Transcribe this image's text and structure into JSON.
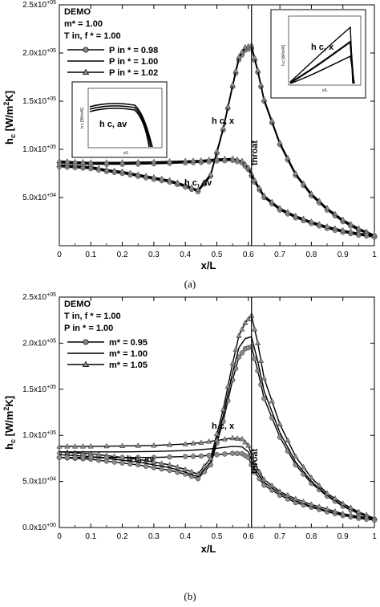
{
  "figure": {
    "panels": [
      {
        "caption": "(a)",
        "legend": {
          "title_lines": [
            "DEMO",
            "m* = 1.00",
            "T in, f * = 1.00"
          ],
          "entries": [
            {
              "label": "P in * = 0.98",
              "marker": "circle"
            },
            {
              "label": "P in * = 1.00",
              "marker": "none"
            },
            {
              "label": "P in * = 1.02",
              "marker": "triangle"
            }
          ]
        },
        "annotations": [
          {
            "text": "h c, x"
          },
          {
            "text": "h c, av"
          },
          {
            "text": "throat"
          }
        ],
        "insets": [
          {
            "annotation": "h c, av",
            "xlabel": "x/L",
            "ylabel": "h c [W/m²K]"
          },
          {
            "annotation": "h c, x",
            "xlabel": "x/L",
            "ylabel": "h c [W/m²K]"
          }
        ]
      },
      {
        "caption": "(b)",
        "legend": {
          "title_lines": [
            "DEMO",
            "T in, f * = 1.00",
            "P in * = 1.00"
          ],
          "entries": [
            {
              "label": "m* = 0.95",
              "marker": "circle"
            },
            {
              "label": "m* = 1.00",
              "marker": "none"
            },
            {
              "label": "m* = 1.05",
              "marker": "triangle"
            }
          ]
        },
        "annotations": [
          {
            "text": "h c, x"
          },
          {
            "text": "h c, av"
          },
          {
            "text": "throat"
          }
        ]
      }
    ]
  },
  "chart_data": [
    {
      "type": "line",
      "title": "",
      "xlabel": "x/L",
      "ylabel": "h c [W/m2K]",
      "xlim": [
        0,
        1
      ],
      "ylim": [
        0,
        250000
      ],
      "xticks": [
        "0",
        "0.1",
        "0.2",
        "0.3",
        "0.4",
        "0.5",
        "0.6",
        "0.7",
        "0.8",
        "0.9",
        "1"
      ],
      "yticks": [
        {
          "value": 50000,
          "label": "5.0x10+04"
        },
        {
          "value": 100000,
          "label": "1.0x10+05"
        },
        {
          "value": 150000,
          "label": "1.5x10+05"
        },
        {
          "value": 200000,
          "label": "2.0x10+05"
        },
        {
          "value": 250000,
          "label": "2.5x10+05"
        }
      ],
      "throat_x": 0.61,
      "series": [
        {
          "name": "P in * = 0.98",
          "marker": "circle",
          "x": [
            0,
            0.05,
            0.1,
            0.15,
            0.2,
            0.25,
            0.3,
            0.35,
            0.4,
            0.44,
            0.48,
            0.52,
            0.55,
            0.57,
            0.59,
            0.61,
            0.63,
            0.65,
            0.7,
            0.75,
            0.8,
            0.85,
            0.9,
            0.95,
            1.0
          ],
          "y": [
            82000,
            81000,
            80000,
            77000,
            75000,
            72000,
            69000,
            66000,
            61000,
            56000,
            72000,
            120000,
            165000,
            193000,
            203000,
            205000,
            180000,
            150000,
            105000,
            73000,
            52000,
            37000,
            25000,
            16000,
            10000
          ]
        },
        {
          "name": "P in * = 1.00",
          "marker": "none",
          "x": [
            0,
            0.05,
            0.1,
            0.15,
            0.2,
            0.25,
            0.3,
            0.35,
            0.4,
            0.44,
            0.48,
            0.52,
            0.55,
            0.57,
            0.59,
            0.61,
            0.63,
            0.65,
            0.7,
            0.75,
            0.8,
            0.85,
            0.9,
            0.95,
            1.0
          ],
          "y": [
            83000,
            82000,
            81000,
            78000,
            76000,
            73000,
            70000,
            67000,
            62000,
            57000,
            73000,
            121000,
            166000,
            195000,
            205000,
            207000,
            181000,
            151000,
            106000,
            74000,
            53000,
            38000,
            26000,
            17000,
            10000
          ]
        },
        {
          "name": "P in * = 1.02",
          "marker": "triangle",
          "x": [
            0,
            0.05,
            0.1,
            0.15,
            0.2,
            0.25,
            0.3,
            0.35,
            0.4,
            0.44,
            0.48,
            0.52,
            0.55,
            0.57,
            0.59,
            0.61,
            0.63,
            0.65,
            0.7,
            0.75,
            0.8,
            0.85,
            0.9,
            0.95,
            1.0
          ],
          "y": [
            84000,
            83000,
            82000,
            79000,
            77000,
            74000,
            71000,
            68000,
            63000,
            58000,
            74000,
            122000,
            167000,
            196000,
            206000,
            208000,
            182000,
            152000,
            107000,
            75000,
            54000,
            39000,
            27000,
            18000,
            11000
          ]
        },
        {
          "name": "h c, av (P in * = 0.98)",
          "marker": "circle",
          "x": [
            0,
            0.05,
            0.1,
            0.2,
            0.3,
            0.4,
            0.45,
            0.5,
            0.55,
            0.58,
            0.6,
            0.62,
            0.65,
            0.7,
            0.75,
            0.8,
            0.85,
            0.9,
            0.95,
            1.0
          ],
          "y": [
            86000,
            85000,
            84500,
            84500,
            85000,
            86000,
            86500,
            88000,
            88500,
            86000,
            79000,
            66000,
            50000,
            37000,
            29000,
            23000,
            18000,
            14000,
            11000,
            9000
          ]
        },
        {
          "name": "h c, av (P in * = 1.00)",
          "marker": "none",
          "x": [
            0,
            0.05,
            0.1,
            0.2,
            0.3,
            0.4,
            0.45,
            0.5,
            0.55,
            0.58,
            0.6,
            0.62,
            0.65,
            0.7,
            0.75,
            0.8,
            0.85,
            0.9,
            0.95,
            1.0
          ],
          "y": [
            87000,
            86000,
            85500,
            85500,
            86000,
            87000,
            87500,
            89000,
            89500,
            87000,
            80000,
            67000,
            51000,
            38000,
            30000,
            24000,
            19000,
            15000,
            12000,
            10000
          ]
        },
        {
          "name": "h c, av (P in * = 1.02)",
          "marker": "triangle",
          "x": [
            0,
            0.05,
            0.1,
            0.2,
            0.3,
            0.4,
            0.45,
            0.5,
            0.55,
            0.58,
            0.6,
            0.62,
            0.65,
            0.7,
            0.75,
            0.8,
            0.85,
            0.9,
            0.95,
            1.0
          ],
          "y": [
            88000,
            87000,
            86500,
            86500,
            87000,
            88000,
            88500,
            90000,
            90500,
            88000,
            81000,
            68000,
            52000,
            39000,
            31000,
            25000,
            20000,
            16000,
            13000,
            11000
          ]
        }
      ]
    },
    {
      "type": "line",
      "title": "",
      "xlabel": "x/L",
      "ylabel": "h c [W/m2K]",
      "xlim": [
        0,
        1
      ],
      "ylim": [
        0,
        250000
      ],
      "xticks": [
        "0",
        "0.1",
        "0.2",
        "0.3",
        "0.4",
        "0.5",
        "0.6",
        "0.7",
        "0.8",
        "0.9",
        "1"
      ],
      "yticks": [
        {
          "value": 0,
          "label": "0.0x10+00"
        },
        {
          "value": 50000,
          "label": "5.0x10+04"
        },
        {
          "value": 100000,
          "label": "1.0x10+05"
        },
        {
          "value": 150000,
          "label": "1.5x10+05"
        },
        {
          "value": 200000,
          "label": "2.0x10+05"
        },
        {
          "value": 250000,
          "label": "2.5x10+05"
        }
      ],
      "throat_x": 0.61,
      "series": [
        {
          "name": "m* = 0.95",
          "marker": "circle",
          "x": [
            0,
            0.05,
            0.1,
            0.15,
            0.2,
            0.25,
            0.3,
            0.35,
            0.4,
            0.44,
            0.48,
            0.52,
            0.55,
            0.57,
            0.59,
            0.61,
            0.63,
            0.65,
            0.7,
            0.75,
            0.8,
            0.85,
            0.9,
            0.95,
            1.0
          ],
          "y": [
            76000,
            75000,
            74000,
            72000,
            70000,
            68000,
            65000,
            62000,
            58000,
            53000,
            68000,
            115000,
            160000,
            185000,
            194000,
            196000,
            170000,
            140000,
            98000,
            68000,
            48000,
            34000,
            23000,
            15000,
            9000
          ]
        },
        {
          "name": "m* = 1.00",
          "marker": "none",
          "x": [
            0,
            0.05,
            0.1,
            0.15,
            0.2,
            0.25,
            0.3,
            0.35,
            0.4,
            0.44,
            0.48,
            0.52,
            0.55,
            0.57,
            0.59,
            0.61,
            0.63,
            0.65,
            0.7,
            0.75,
            0.8,
            0.85,
            0.9,
            0.95,
            1.0
          ],
          "y": [
            79000,
            78000,
            77000,
            75000,
            73000,
            71000,
            68000,
            65000,
            60000,
            55000,
            71000,
            121000,
            168000,
            195000,
            205000,
            207000,
            180000,
            148000,
            103000,
            71000,
            50000,
            35000,
            24000,
            16000,
            10000
          ]
        },
        {
          "name": "m* = 1.05",
          "marker": "triangle",
          "x": [
            0,
            0.05,
            0.1,
            0.15,
            0.2,
            0.25,
            0.3,
            0.35,
            0.4,
            0.44,
            0.48,
            0.52,
            0.55,
            0.57,
            0.59,
            0.61,
            0.63,
            0.65,
            0.7,
            0.75,
            0.8,
            0.85,
            0.9,
            0.95,
            1.0
          ],
          "y": [
            82000,
            81000,
            80000,
            78000,
            76000,
            74000,
            71000,
            68000,
            63000,
            58000,
            75000,
            128000,
            178000,
            208000,
            222000,
            230000,
            200000,
            162000,
            112000,
            77000,
            54000,
            37000,
            26000,
            17000,
            10000
          ]
        },
        {
          "name": "h c, av (m* = 0.95)",
          "marker": "circle",
          "x": [
            0,
            0.05,
            0.1,
            0.2,
            0.3,
            0.4,
            0.45,
            0.5,
            0.55,
            0.58,
            0.6,
            0.62,
            0.65,
            0.7,
            0.75,
            0.8,
            0.85,
            0.9,
            0.95,
            1.0
          ],
          "y": [
            76000,
            76000,
            76000,
            76000,
            76000,
            77000,
            77500,
            79000,
            80500,
            80000,
            76000,
            60000,
            46000,
            35000,
            27000,
            22000,
            17000,
            13000,
            10000,
            8000
          ]
        },
        {
          "name": "h c, av (m* = 1.00)",
          "marker": "none",
          "x": [
            0,
            0.05,
            0.1,
            0.2,
            0.3,
            0.4,
            0.45,
            0.5,
            0.55,
            0.58,
            0.6,
            0.62,
            0.65,
            0.7,
            0.75,
            0.8,
            0.85,
            0.9,
            0.95,
            1.0
          ],
          "y": [
            82000,
            82000,
            82000,
            82000,
            82500,
            83500,
            84500,
            86000,
            88000,
            87500,
            82000,
            64000,
            49000,
            37000,
            29000,
            23000,
            18000,
            14000,
            11000,
            9000
          ]
        },
        {
          "name": "h c, av (m* = 1.05)",
          "marker": "triangle",
          "x": [
            0,
            0.05,
            0.1,
            0.2,
            0.3,
            0.4,
            0.45,
            0.5,
            0.55,
            0.58,
            0.6,
            0.62,
            0.65,
            0.7,
            0.75,
            0.8,
            0.85,
            0.9,
            0.95,
            1.0
          ],
          "y": [
            88000,
            88000,
            88000,
            88500,
            89000,
            90500,
            92000,
            94500,
            97000,
            96000,
            89000,
            69000,
            52000,
            39000,
            31000,
            25000,
            20000,
            15000,
            12000,
            10000
          ]
        }
      ]
    }
  ]
}
